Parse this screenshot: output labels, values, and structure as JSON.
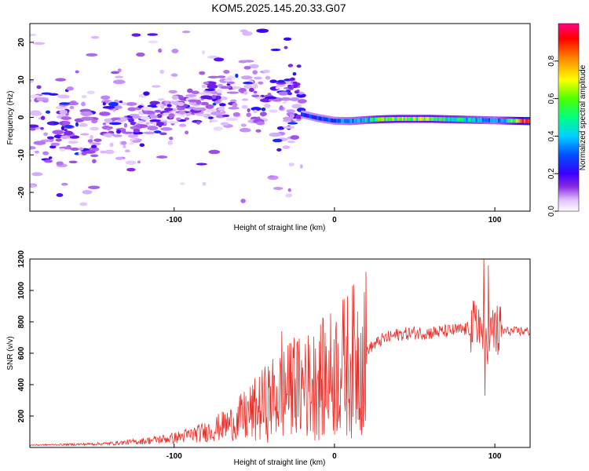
{
  "figure": {
    "title": "KOM5.2025.145.20.33.G07"
  },
  "chart_data": [
    {
      "type": "heatmap",
      "title": "KOM5.2025.145.20.33.G07",
      "xlabel": "Height of straight line (km)",
      "ylabel": "Frequency (Hz)",
      "xlim": [
        -190,
        122
      ],
      "ylim": [
        -25,
        25
      ],
      "xticks": [
        -100,
        0,
        100
      ],
      "yticks": [
        -20,
        -10,
        0,
        10,
        20
      ],
      "grid": false,
      "colorbar": {
        "label": "Normalized spectral amplitude",
        "range": [
          0,
          1
        ],
        "ticks": [
          "0.0",
          "0.2",
          "0.4",
          "0.6",
          "0.8"
        ],
        "colormap": [
          "#ffffff",
          "#d8b0ff",
          "#8a2be2",
          "#3a00ff",
          "#0040ff",
          "#00c0ff",
          "#00ff90",
          "#60ff00",
          "#ffff00",
          "#ff8000",
          "#ff0000",
          "#ff0080"
        ]
      },
      "ridge": {
        "x": [
          -20,
          -10,
          0,
          10,
          20,
          30,
          40,
          50,
          60,
          70,
          80,
          90,
          100,
          110,
          122
        ],
        "frequency_hz": [
          0.8,
          -0.2,
          -0.9,
          -1.0,
          -0.7,
          -0.5,
          -0.4,
          -0.4,
          -0.4,
          -0.5,
          -0.6,
          -0.7,
          -0.8,
          -0.9,
          -1.0
        ],
        "amplitude": [
          0.3,
          0.35,
          0.35,
          0.4,
          0.45,
          0.6,
          0.65,
          0.6,
          0.65,
          0.55,
          0.5,
          0.45,
          0.4,
          0.55,
          1.0
        ]
      },
      "scatter_region": {
        "description_x_range": [
          -190,
          -20
        ],
        "note": "diffuse low-amplitude energy trending from about -3 Hz near -150 km to about +5 Hz near -70 km"
      }
    },
    {
      "type": "line",
      "xlabel": "Height of straight line (km)",
      "ylabel": "SNR (v/v)",
      "xlim": [
        -190,
        122
      ],
      "ylim": [
        0,
        1200
      ],
      "xticks": [
        -100,
        0,
        100
      ],
      "yticks": [
        200,
        400,
        600,
        800,
        1000,
        1200
      ],
      "grid": false,
      "color": "#e8302a",
      "envelope": {
        "x": [
          -190,
          -160,
          -140,
          -120,
          -100,
          -80,
          -60,
          -50,
          -40,
          -30,
          -20,
          -10,
          0,
          10,
          20,
          30,
          40,
          50,
          60,
          70,
          80,
          90,
          95,
          100,
          110,
          122
        ],
        "y": [
          15,
          20,
          25,
          40,
          60,
          100,
          170,
          230,
          300,
          350,
          380,
          420,
          480,
          540,
          620,
          690,
          720,
          730,
          730,
          740,
          750,
          760,
          700,
          740,
          740,
          740
        ]
      },
      "spikes": [
        {
          "x": -33,
          "y": 740
        },
        {
          "x": -29,
          "y": 650
        },
        {
          "x": -25,
          "y": 700
        },
        {
          "x": -18,
          "y": 660
        },
        {
          "x": -12,
          "y": 630
        },
        {
          "x": 5,
          "y": 720
        },
        {
          "x": 15,
          "y": 700
        },
        {
          "x": 90,
          "y": 880
        },
        {
          "x": 93,
          "y": 1230
        },
        {
          "x": 94,
          "y": 330
        },
        {
          "x": 96,
          "y": 1160
        },
        {
          "x": 100,
          "y": 860
        },
        {
          "x": 102,
          "y": 590
        }
      ]
    }
  ]
}
